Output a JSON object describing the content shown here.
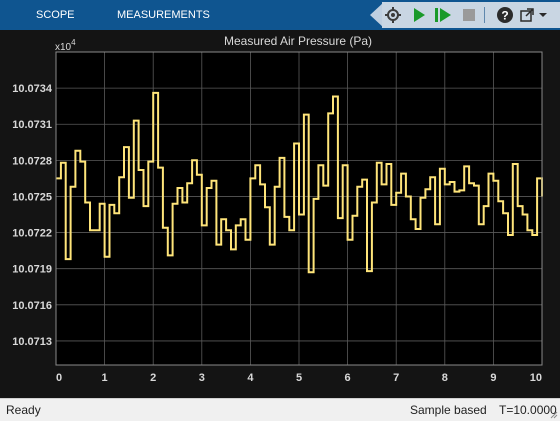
{
  "tabs": [
    {
      "label": "SCOPE"
    },
    {
      "label": "MEASUREMENTS"
    }
  ],
  "toolbar": {
    "icons": [
      "settings-icon",
      "play-icon",
      "step-forward-icon",
      "stop-icon",
      "help-icon",
      "undock-icon",
      "dropdown-icon"
    ]
  },
  "colors": {
    "toolstrip": "#0f5590",
    "plot_background": "#141414",
    "axes_background": "#000000",
    "series": "#ffe57a",
    "grid": "#5a5a5a",
    "axis_text": "#d9d9d9"
  },
  "chart_data": {
    "type": "line",
    "style": "stairs",
    "title": "Measured Air Pressure (Pa)",
    "exponent_label": "x10",
    "exponent_power": "4",
    "xlim": [
      0,
      10
    ],
    "ylim": [
      10.0711,
      10.0737
    ],
    "x_ticks": [
      "0",
      "1",
      "2",
      "3",
      "4",
      "5",
      "6",
      "7",
      "8",
      "9",
      "10"
    ],
    "y_ticks": [
      "10.0713",
      "10.0716",
      "10.0719",
      "10.0722",
      "10.0725",
      "10.0728",
      "10.0731",
      "10.0734"
    ],
    "y_tick_values": [
      10.0713,
      10.0716,
      10.0719,
      10.0722,
      10.0725,
      10.0728,
      10.0731,
      10.0734
    ],
    "grid": true,
    "series": [
      {
        "x": [
          0,
          0.1,
          0.2,
          0.3,
          0.4,
          0.5,
          0.6,
          0.7,
          0.8,
          0.9,
          1.0,
          1.1,
          1.2,
          1.3,
          1.4,
          1.5,
          1.6,
          1.7,
          1.8,
          1.9,
          2.0,
          2.1,
          2.2,
          2.3,
          2.4,
          2.5,
          2.6,
          2.7,
          2.8,
          2.9,
          3.0,
          3.1,
          3.2,
          3.3,
          3.4,
          3.5,
          3.6,
          3.7,
          3.8,
          3.9,
          4.0,
          4.1,
          4.2,
          4.3,
          4.4,
          4.5,
          4.6,
          4.7,
          4.8,
          4.9,
          5.0,
          5.1,
          5.2,
          5.3,
          5.4,
          5.5,
          5.6,
          5.7,
          5.8,
          5.9,
          6.0,
          6.1,
          6.2,
          6.3,
          6.4,
          6.5,
          6.6,
          6.7,
          6.8,
          6.9,
          7.0,
          7.1,
          7.2,
          7.3,
          7.4,
          7.5,
          7.6,
          7.7,
          7.8,
          7.9,
          8.0,
          8.1,
          8.2,
          8.3,
          8.4,
          8.5,
          8.6,
          8.7,
          8.8,
          8.9,
          9.0,
          9.1,
          9.2,
          9.3,
          9.4,
          9.5,
          9.6,
          9.7,
          9.8,
          9.9,
          10.0
        ],
        "values": [
          10.07265,
          10.07278,
          10.07198,
          10.07258,
          10.07288,
          10.07279,
          10.07245,
          10.07222,
          10.07222,
          10.07244,
          10.072,
          10.07243,
          10.07236,
          10.07266,
          10.07291,
          10.07249,
          10.07313,
          10.07272,
          10.07242,
          10.07279,
          10.07336,
          10.07274,
          10.07224,
          10.07201,
          10.07244,
          10.07257,
          10.07245,
          10.07261,
          10.0728,
          10.07268,
          10.07226,
          10.07257,
          10.07263,
          10.0721,
          10.07231,
          10.07222,
          10.07206,
          10.07226,
          10.07231,
          10.07214,
          10.07265,
          10.07276,
          10.0726,
          10.07241,
          10.0721,
          10.07258,
          10.07282,
          10.07233,
          10.07222,
          10.07294,
          10.07235,
          10.07318,
          10.07187,
          10.07248,
          10.07276,
          10.07259,
          10.07319,
          10.07333,
          10.07232,
          10.07276,
          10.07214,
          10.07234,
          10.07258,
          10.07264,
          10.07188,
          10.07245,
          10.07278,
          10.0726,
          10.07277,
          10.07243,
          10.07253,
          10.07269,
          10.0725,
          10.07231,
          10.07223,
          10.07249,
          10.07256,
          10.07266,
          10.07227,
          10.07273,
          10.0726,
          10.07262,
          10.07254,
          10.07255,
          10.07275,
          10.07261,
          10.07259,
          10.07227,
          10.07242,
          10.07269,
          10.07263,
          10.07246,
          10.07236,
          10.07218,
          10.07277,
          10.07242,
          10.07235,
          10.07222,
          10.07218,
          10.07265,
          10.0725
        ]
      }
    ]
  },
  "status": {
    "left": "Ready",
    "mode": "Sample based",
    "time": "T=10.0000"
  }
}
